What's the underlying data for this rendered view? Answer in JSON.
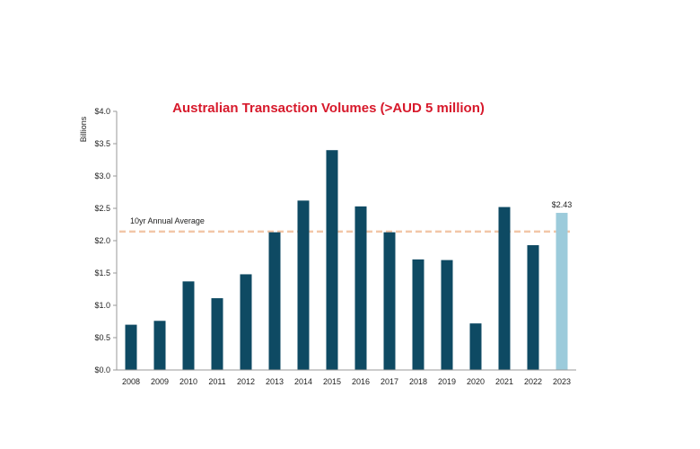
{
  "chart_data": {
    "type": "bar",
    "title": "Australian Transaction Volumes (>AUD 5 million)",
    "ylabel": "Billions",
    "xlabel": "",
    "ylim": [
      0,
      4
    ],
    "yticks": [
      "$0.0",
      "$0.5",
      "$1.0",
      "$1.5",
      "$2.0",
      "$2.5",
      "$3.0",
      "$3.5",
      "$4.0"
    ],
    "categories": [
      "2008",
      "2009",
      "2010",
      "2011",
      "2012",
      "2013",
      "2014",
      "2015",
      "2016",
      "2017",
      "2018",
      "2019",
      "2020",
      "2021",
      "2022",
      "2023"
    ],
    "values": [
      0.7,
      0.76,
      1.37,
      1.11,
      1.48,
      2.13,
      2.62,
      3.4,
      2.53,
      2.13,
      1.71,
      1.7,
      0.72,
      2.52,
      1.93,
      2.43
    ],
    "highlight_index": 15,
    "highlight_label": "$2.43",
    "average_line": {
      "label": "10yr Annual Average",
      "value": 2.14
    },
    "colors": {
      "bar": "#0e4a63",
      "highlight_bar": "#9ccbdb",
      "average_line": "#f2c6a8",
      "title": "#d7192b",
      "axis": "#999999"
    },
    "grid": false,
    "legend": "none"
  }
}
